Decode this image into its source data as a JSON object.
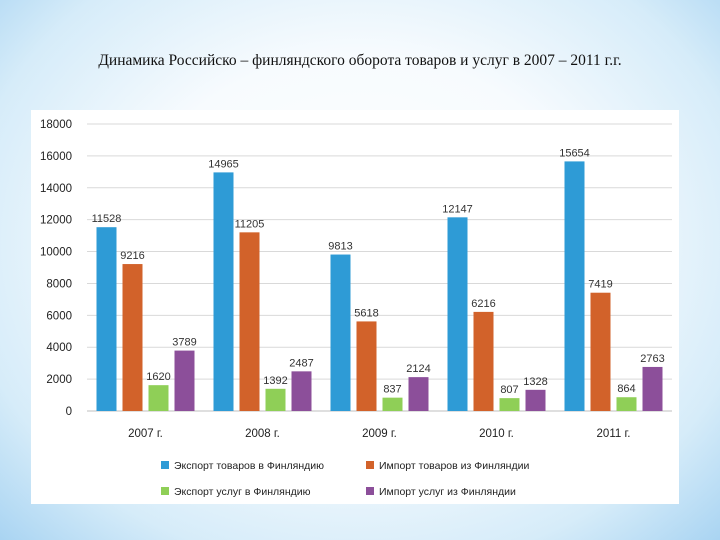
{
  "title": "Динамика Российско – финляндского оборота товаров и услуг в 2007 – 2011 г.г.",
  "chart_data": {
    "type": "bar",
    "categories": [
      "2007 г.",
      "2008 г.",
      "2009 г.",
      "2010 г.",
      "2011 г."
    ],
    "ylim": [
      0,
      18000
    ],
    "yticks": [
      0,
      2000,
      4000,
      6000,
      8000,
      10000,
      12000,
      14000,
      16000,
      18000
    ],
    "grid": true,
    "legend_position": "bottom",
    "series": [
      {
        "name": "Экспорт товаров в Финляндию",
        "color": "#2e9bd6",
        "values": [
          11528,
          14965,
          9813,
          12147,
          15654
        ]
      },
      {
        "name": "Импорт товаров из Финляндии",
        "color": "#d2622a",
        "values": [
          9216,
          11205,
          5618,
          6216,
          7419
        ]
      },
      {
        "name": "Экспорт услуг в Финляндию",
        "color": "#8fcf57",
        "values": [
          1620,
          1392,
          837,
          807,
          864
        ]
      },
      {
        "name": "Импорт услуг из Финляндии",
        "color": "#8c4f9a",
        "values": [
          3789,
          2487,
          2124,
          1328,
          2763
        ]
      }
    ]
  }
}
